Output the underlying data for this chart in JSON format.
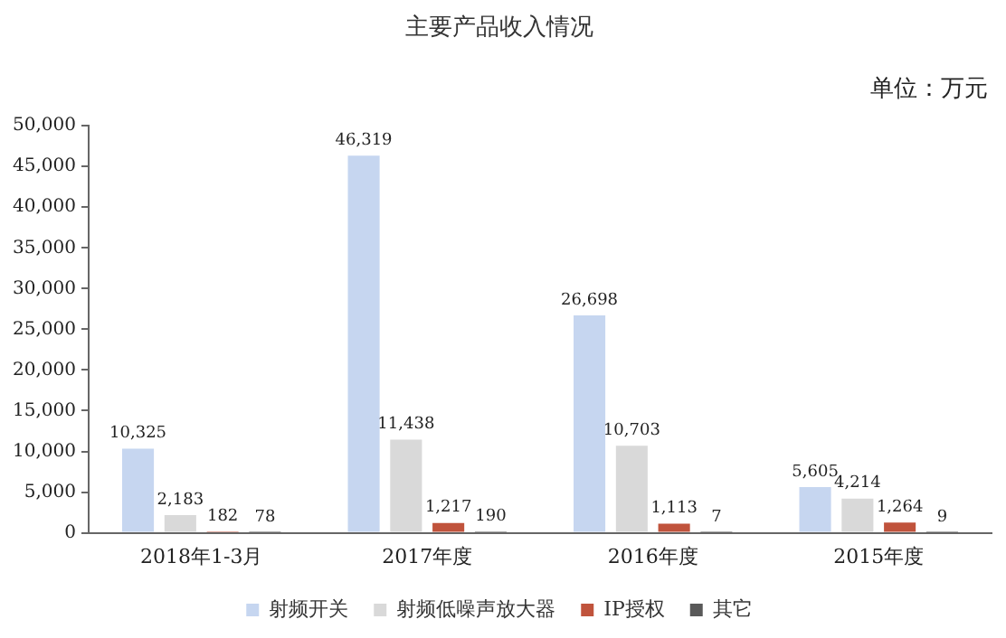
{
  "chart_data": {
    "type": "bar",
    "title": "主要产品收入情况",
    "annotations": [
      "单位：万元"
    ],
    "categories": [
      "2018年1-3月",
      "2017年度",
      "2016年度",
      "2015年度"
    ],
    "series": [
      {
        "name": "射频开关",
        "color": "#c6d6f0",
        "values": [
          10325,
          46319,
          26698,
          5605
        ],
        "value_labels": [
          "10,325",
          "46,319",
          "26,698",
          "5,605"
        ]
      },
      {
        "name": "射频低噪声放大器",
        "color": "#d9d9d9",
        "values": [
          2183,
          11438,
          10703,
          4214
        ],
        "value_labels": [
          "2,183",
          "11,438",
          "10,703",
          "4,214"
        ]
      },
      {
        "name": "IP授权",
        "color": "#c0533c",
        "values": [
          182,
          1217,
          1113,
          1264
        ],
        "value_labels": [
          "182",
          "1,217",
          "1,113",
          "1,264"
        ]
      },
      {
        "name": "其它",
        "color": "#595959",
        "values": [
          78,
          190,
          7,
          9
        ],
        "value_labels": [
          "78",
          "190",
          "7",
          "9"
        ]
      }
    ],
    "ylim": [
      0,
      50000
    ],
    "yticks": [
      0,
      {
        "value": 5000,
        "label": "5,000"
      },
      {
        "value": 10000,
        "label": "10,000"
      },
      {
        "value": 15000,
        "label": "15,000"
      },
      {
        "value": 20000,
        "label": "20,000"
      },
      {
        "value": 25000,
        "label": "25,000"
      },
      {
        "value": 30000,
        "label": "30,000"
      },
      {
        "value": 35000,
        "label": "35,000"
      },
      {
        "value": 40000,
        "label": "40,000"
      },
      {
        "value": 45000,
        "label": "45,000"
      },
      {
        "value": 50000,
        "label": "50,000"
      }
    ],
    "grid": false,
    "legend": "bottom"
  }
}
